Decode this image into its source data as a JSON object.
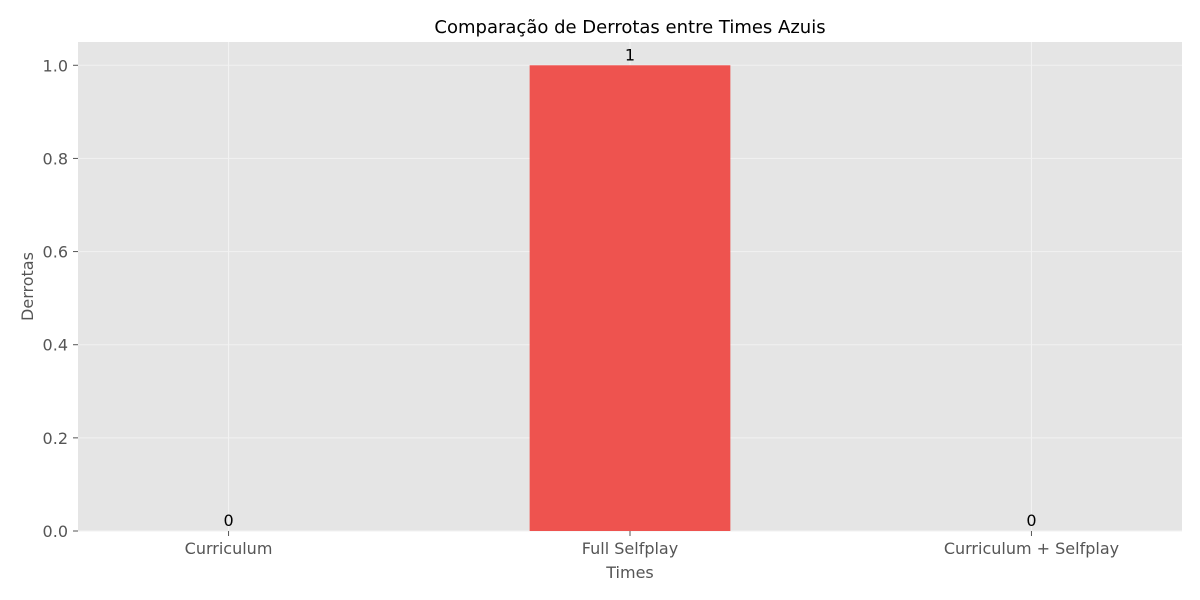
{
  "chart_data": {
    "type": "bar",
    "title": "Comparação de Derrotas entre Times Azuis",
    "xlabel": "Times",
    "ylabel": "Derrotas",
    "categories": [
      "Curriculum",
      "Full Selfplay",
      "Curriculum + Selfplay"
    ],
    "values": [
      0,
      1,
      0
    ],
    "data_labels": [
      "0",
      "1",
      "0"
    ],
    "ylim": [
      0,
      1.05
    ],
    "yticks": [
      0.0,
      0.2,
      0.4,
      0.6,
      0.8,
      1.0
    ],
    "ytick_labels": [
      "0.0",
      "0.2",
      "0.4",
      "0.6",
      "0.8",
      "1.0"
    ],
    "grid": true,
    "bar_color": "#ee534f",
    "plot_background": "#e5e5e5"
  }
}
